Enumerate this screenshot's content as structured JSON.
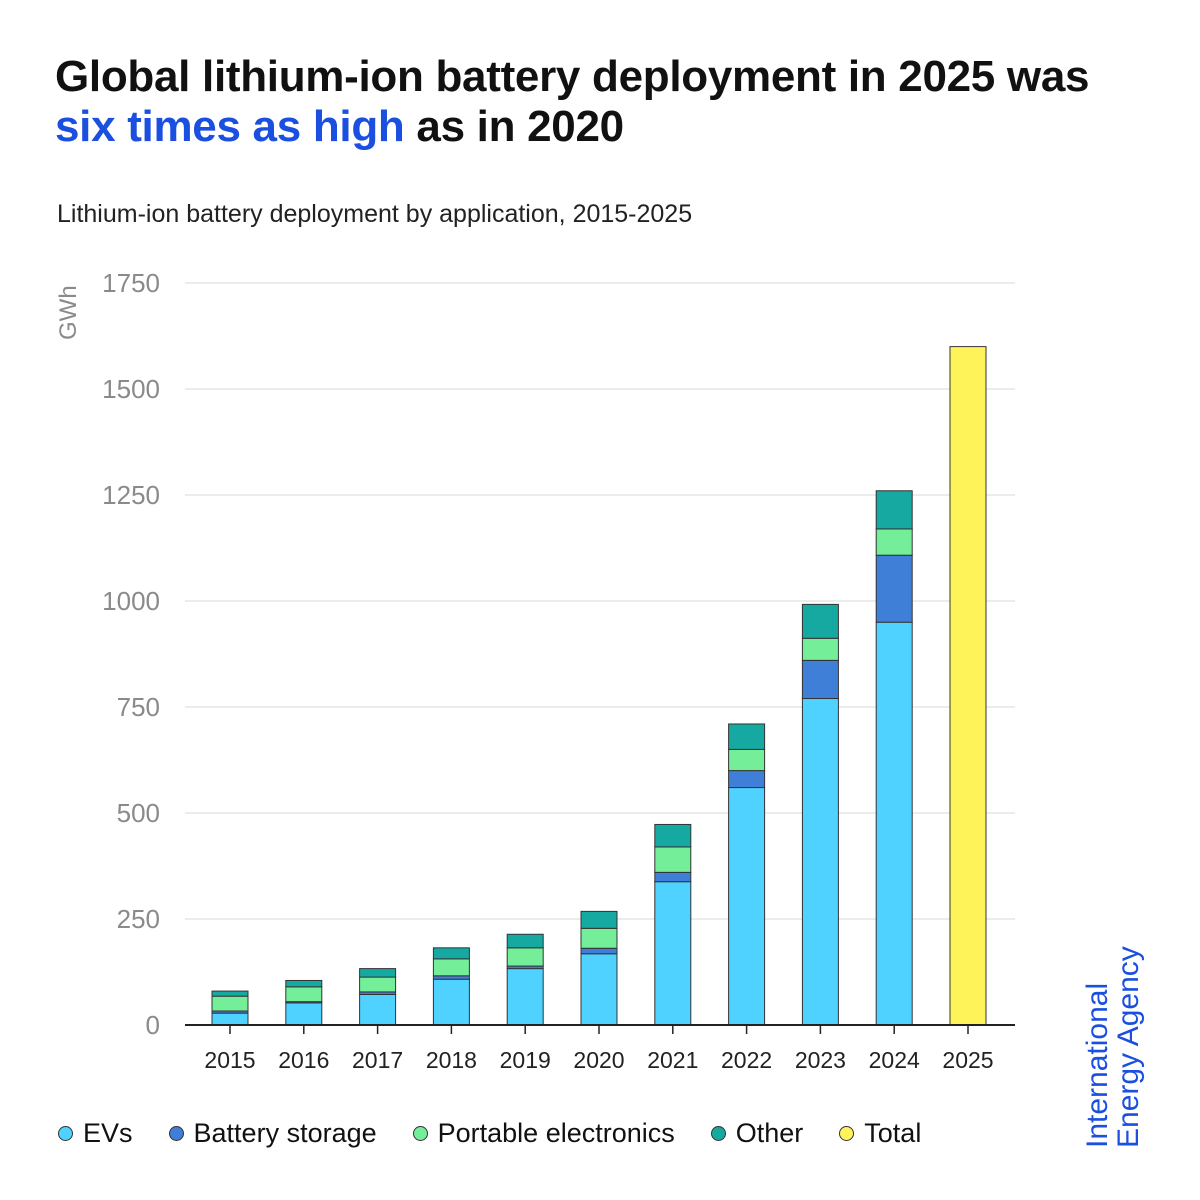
{
  "header": {
    "title_part1": "Global lithium-ion battery deployment in 2025 was ",
    "title_highlight": "six times as high",
    "title_part2": " as in 2020",
    "subtitle": "Lithium-ion battery deployment by application, 2015-2025"
  },
  "logo": {
    "line1": "International",
    "line2": "Energy Agency"
  },
  "colors": {
    "highlight": "#1a4fe0",
    "evs": "#4fd2ff",
    "battery_storage": "#3f7fd8",
    "portable_electronics": "#74ee98",
    "other": "#15a9a1",
    "total": "#fff35a"
  },
  "chart_data": {
    "type": "bar",
    "stacked": true,
    "ylabel": "GWh",
    "ylim": [
      0,
      1750
    ],
    "yticks": [
      0,
      250,
      500,
      750,
      1000,
      1250,
      1500,
      1750
    ],
    "grid": true,
    "legend_position": "bottom",
    "categories": [
      "2015",
      "2016",
      "2017",
      "2018",
      "2019",
      "2020",
      "2021",
      "2022",
      "2023",
      "2024",
      "2025"
    ],
    "series": [
      {
        "name": "EVs",
        "color_key": "evs",
        "values": [
          28,
          52,
          72,
          108,
          133,
          168,
          338,
          560,
          770,
          950,
          0
        ]
      },
      {
        "name": "Battery storage",
        "color_key": "battery_storage",
        "values": [
          5,
          3,
          6,
          8,
          6,
          13,
          22,
          40,
          90,
          158,
          0
        ]
      },
      {
        "name": "Portable electronics",
        "color_key": "portable_electronics",
        "values": [
          35,
          35,
          35,
          40,
          43,
          47,
          60,
          50,
          52,
          62,
          0
        ]
      },
      {
        "name": "Other",
        "color_key": "other",
        "values": [
          12,
          15,
          20,
          26,
          32,
          40,
          53,
          60,
          80,
          90,
          0
        ]
      },
      {
        "name": "Total",
        "color_key": "total",
        "values": [
          0,
          0,
          0,
          0,
          0,
          0,
          0,
          0,
          0,
          0,
          1600
        ]
      }
    ]
  }
}
